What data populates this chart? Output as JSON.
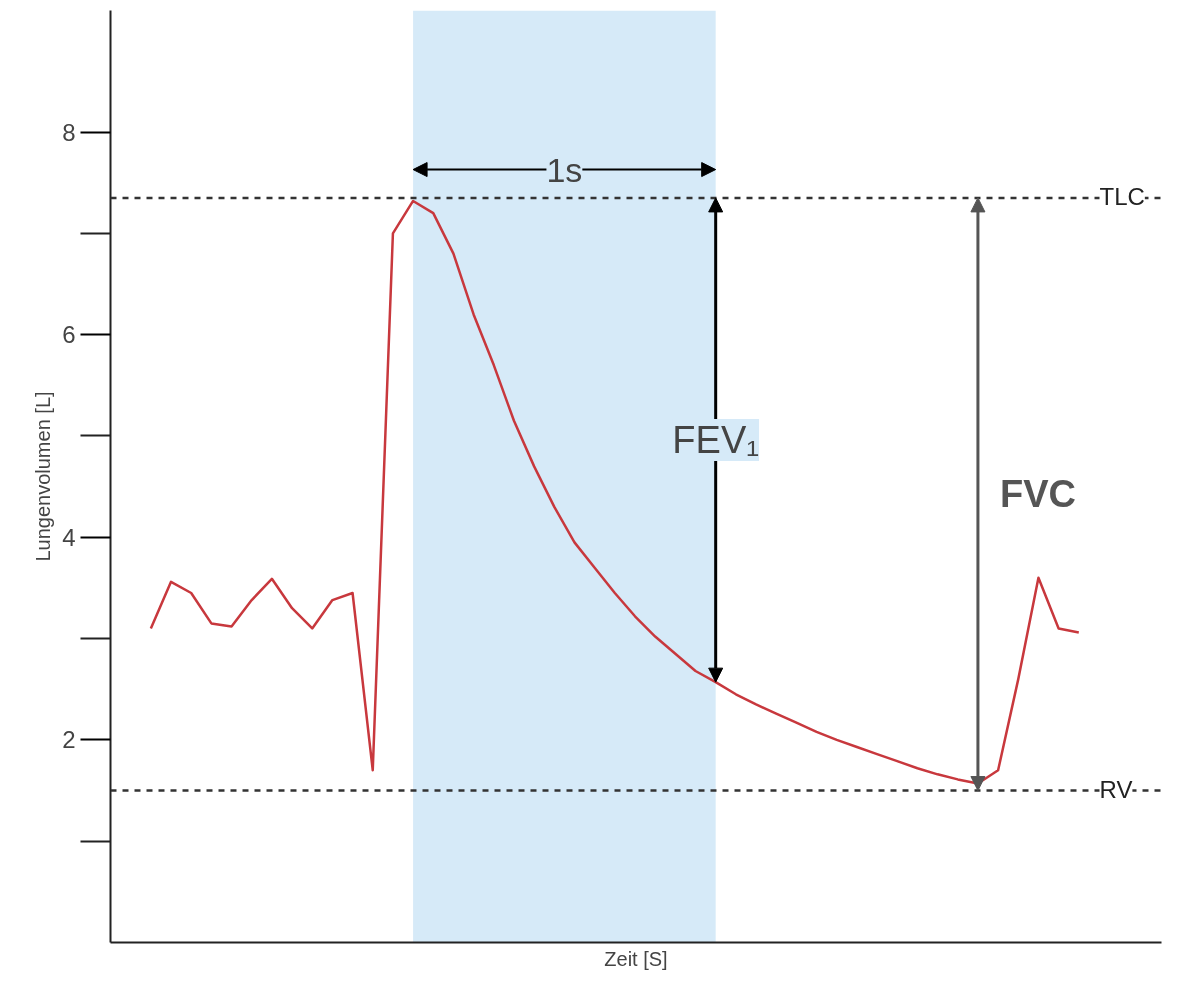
{
  "chart_data": {
    "type": "line",
    "xlabel": "Zeit [S]",
    "ylabel": "Lungenvolumen [L]",
    "categories": [
      null,
      null,
      null,
      null,
      null,
      null,
      null,
      null,
      null,
      null,
      null,
      null,
      null,
      null,
      null,
      null,
      null,
      null,
      null,
      null,
      null,
      null,
      null,
      null,
      null,
      null,
      null,
      null,
      null,
      null,
      null,
      null,
      null,
      null,
      null,
      null,
      null,
      null,
      null,
      null,
      null,
      null,
      null,
      null,
      null,
      null,
      null
    ],
    "series": [
      {
        "color": "#c8383d",
        "values": [
          3.1,
          3.56,
          3.45,
          3.15,
          3.12,
          3.38,
          3.59,
          3.3,
          3.1,
          3.38,
          3.45,
          1.7,
          7.0,
          7.32,
          7.2,
          6.8,
          6.2,
          5.7,
          5.15,
          4.7,
          4.3,
          3.95,
          3.7,
          3.45,
          3.22,
          3.02,
          2.85,
          2.68,
          2.57,
          2.45,
          2.35,
          2.26,
          2.17,
          2.08,
          2.0,
          1.93,
          1.86,
          1.79,
          1.72,
          1.66,
          1.61,
          1.57,
          1.7,
          2.6,
          3.6,
          3.1,
          3.06
        ]
      }
    ],
    "ylim": [
      0,
      9.2
    ],
    "yticks": [
      2,
      4,
      6,
      8
    ],
    "tick_labels": "y",
    "grid": false,
    "line_style": "solid",
    "marker": "none",
    "ref_lines": [
      {
        "axis": "y",
        "value": 7.35,
        "label": "TLC",
        "color": "#333333",
        "line_style": "dashed"
      },
      {
        "axis": "y",
        "value": 1.5,
        "label": "RV",
        "color": "#333333",
        "line_style": "dashed"
      }
    ],
    "annotations": [
      "1s",
      "FEV₁",
      "FVC"
    ]
  }
}
